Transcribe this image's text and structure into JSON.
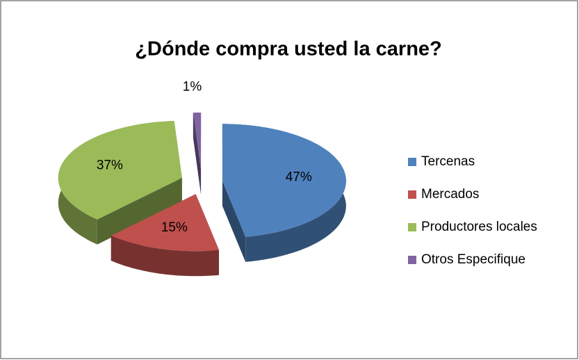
{
  "chart_data": {
    "type": "pie",
    "title": "¿Dónde compra usted la carne?",
    "categories": [
      "Tercenas",
      "Mercados",
      "Productores locales",
      "Otros Especifique"
    ],
    "values": [
      47,
      15,
      37,
      1
    ],
    "value_labels": [
      "47%",
      "15%",
      "37%",
      "1%"
    ],
    "colors": [
      "#4f81bd",
      "#c0504d",
      "#9bbb59",
      "#8064a2"
    ],
    "legend": "right"
  }
}
